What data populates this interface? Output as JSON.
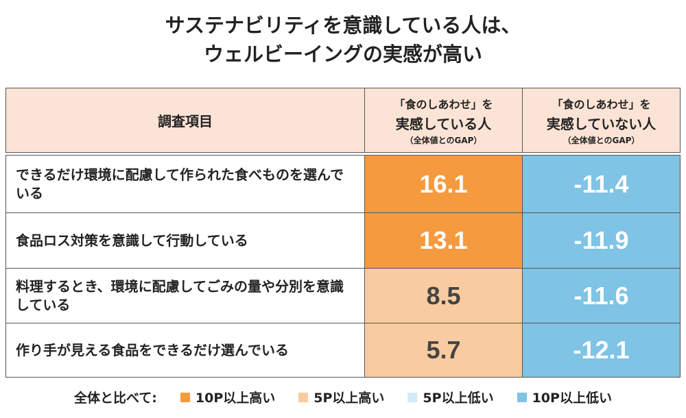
{
  "header": {
    "title": [
      "サステナビリティを意識している人は、",
      "ウェルビーイングの実感が高い"
    ]
  },
  "table": {
    "columns": [
      "調査項目",
      [
        "「食のしあわせ」を",
        "実感している人",
        "（全体値とのGAP）"
      ],
      [
        "「食のしあわせ」を",
        "実感していない人",
        "（全体値とのGAP）"
      ]
    ],
    "rows": [
      {
        "label": "できるだけ環境に配慮して作られた食べものを選んでいる",
        "values": [
          16.1,
          -11.4
        ],
        "legend": [
          0,
          3
        ]
      },
      {
        "label": "食品ロス対策を意識して行動している",
        "values": [
          13.1,
          -11.9
        ],
        "legend": [
          0,
          3
        ]
      },
      {
        "label": "料理するとき、環境に配慮してごみの量や分別を意識している",
        "values": [
          8.5,
          -11.6
        ],
        "legend": [
          1,
          3
        ]
      },
      {
        "label": "作り手が見える食品をできるだけ選んでいる",
        "values": [
          5.7,
          -12.1
        ],
        "legend": [
          1,
          3
        ]
      }
    ]
  },
  "legend": {
    "title": "全体と比べて:",
    "items": [
      {
        "label": "10P以上高い",
        "color": "#f59a3f"
      },
      {
        "label": "5P以上高い",
        "color": "#f9cba0"
      },
      {
        "label": "5P以上低い",
        "color": "#d3ebf8"
      },
      {
        "label": "10P以上低い",
        "color": "#7fc3e5"
      }
    ]
  }
}
